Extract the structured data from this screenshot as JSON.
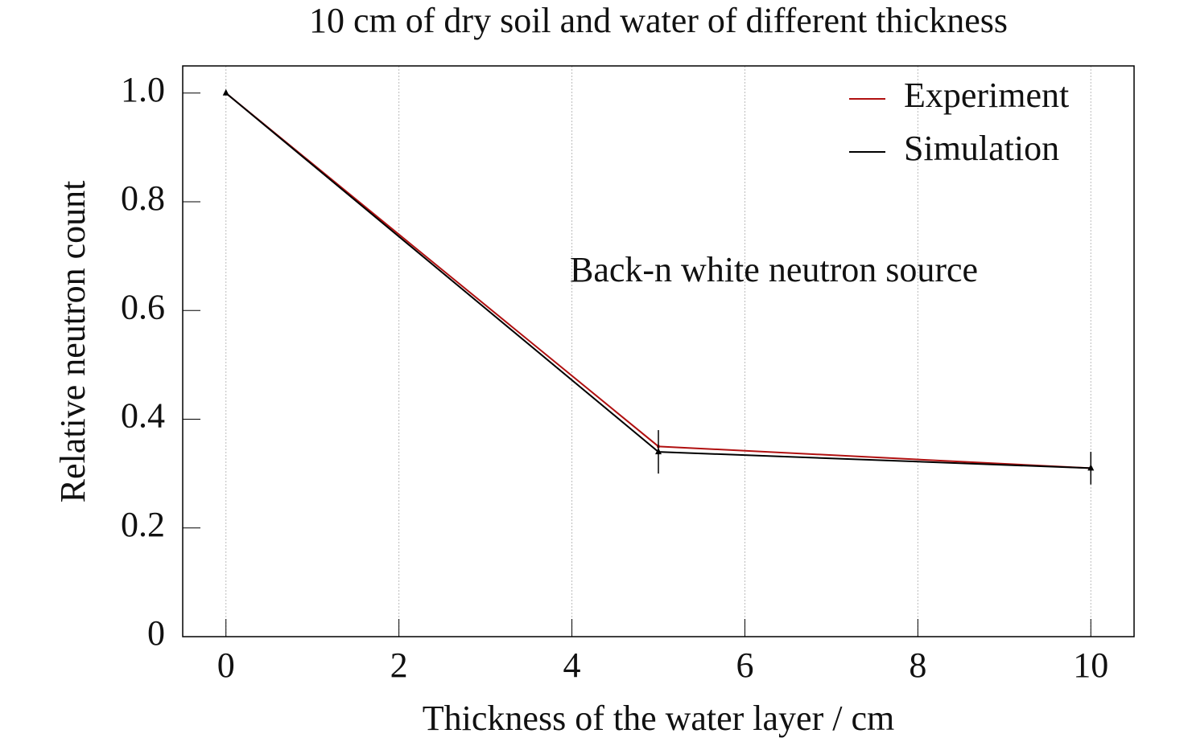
{
  "chart_data": {
    "type": "line",
    "title": "10 cm of dry soil and water of different thickness",
    "x_label": "Thickness of the water layer / cm",
    "y_label": "Relative neutron count",
    "annotation": "Back-n white neutron source",
    "x": [
      0,
      5,
      10
    ],
    "series": [
      {
        "name": "Experiment",
        "color": "#b01010",
        "values": [
          1.0,
          0.35,
          0.31
        ]
      },
      {
        "name": "Simulation",
        "color": "#000000",
        "values": [
          1.0,
          0.34,
          0.31
        ],
        "errors": [
          null,
          0.04,
          0.03
        ]
      }
    ],
    "xlim": [
      -0.5,
      10.5
    ],
    "xticks": [
      0,
      2,
      4,
      6,
      8,
      10
    ],
    "ylim": [
      0,
      1.05
    ],
    "yticks": [
      0,
      0.2,
      0.4,
      0.6,
      0.8,
      {
        "value": 1,
        "label": "1.0"
      }
    ],
    "grid_x": true,
    "legend": "upper right"
  }
}
